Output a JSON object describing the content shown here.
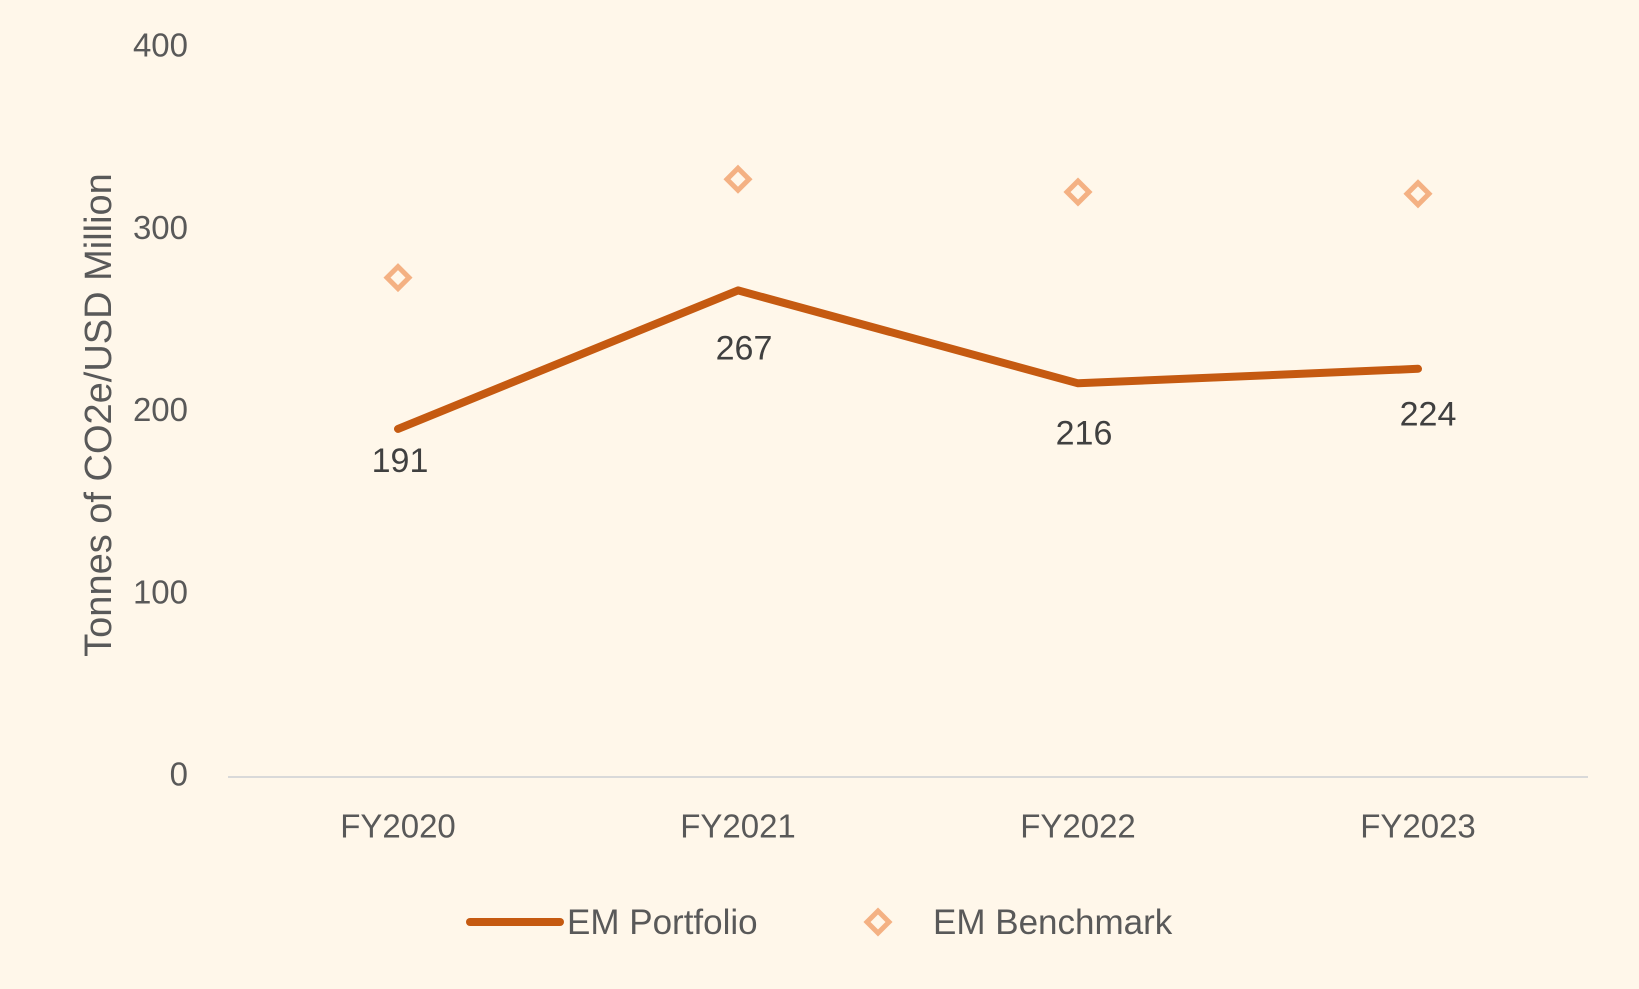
{
  "chart_data": {
    "type": "line",
    "categories": [
      "FY2020",
      "FY2021",
      "FY2022",
      "FY2023"
    ],
    "ylabel": "Tonnes of CO2e/USD Million",
    "ylim": [
      0,
      400
    ],
    "yticks": [
      0,
      100,
      200,
      300,
      400
    ],
    "grid": false,
    "legend_position": "bottom",
    "series": [
      {
        "name": "EM Portfolio",
        "style": "line",
        "values": [
          191,
          267,
          216,
          224
        ],
        "data_labels": [
          "191",
          "267",
          "216",
          "224"
        ],
        "color": "#c55a11"
      },
      {
        "name": "EM Benchmark",
        "style": "diamond-markers",
        "values": [
          274,
          328,
          321,
          320
        ],
        "color": "#f4b183"
      }
    ]
  },
  "colors": {
    "background": "#fff7ea",
    "axis": "#d9d9d9",
    "text": "#595959"
  }
}
